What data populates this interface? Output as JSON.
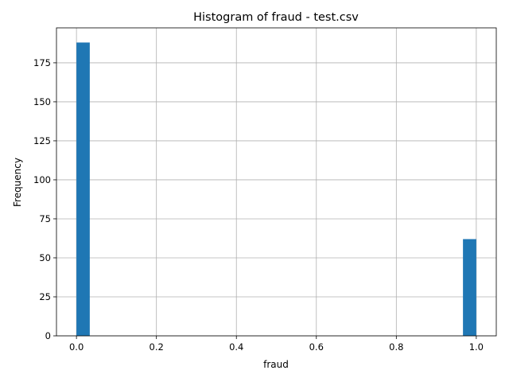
{
  "chart_data": {
    "type": "bar",
    "title": "Histogram of fraud - test.csv",
    "xlabel": "fraud",
    "ylabel": "Frequency",
    "xlim": [
      -0.05,
      1.05
    ],
    "ylim": [
      0,
      197.4
    ],
    "xticks": [
      0.0,
      0.2,
      0.4,
      0.6,
      0.8,
      1.0
    ],
    "xtick_labels": [
      "0.0",
      "0.2",
      "0.4",
      "0.6",
      "0.8",
      "1.0"
    ],
    "yticks": [
      0,
      25,
      50,
      75,
      100,
      125,
      150,
      175
    ],
    "ytick_labels": [
      "0",
      "25",
      "50",
      "75",
      "100",
      "125",
      "150",
      "175"
    ],
    "grid": true,
    "bin_count": 30,
    "bins": [
      {
        "x_start": 0.0,
        "x_end": 0.0333,
        "count": 188
      },
      {
        "x_start": 0.9667,
        "x_end": 1.0,
        "count": 62
      }
    ],
    "bar_color": "#1f77b4"
  }
}
